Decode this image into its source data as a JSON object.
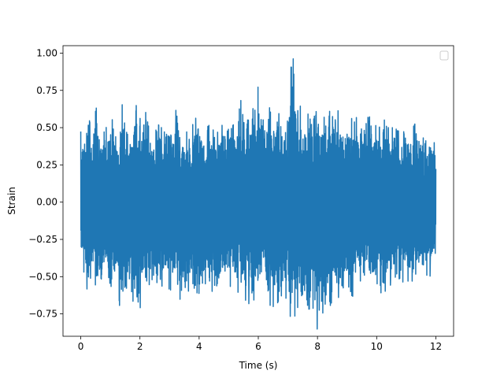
{
  "chart_data": {
    "type": "line",
    "title": "",
    "xlabel": "Time (s)",
    "ylabel": "Strain",
    "xlim": [
      -0.6,
      12.6
    ],
    "ylim": [
      -0.9,
      1.05
    ],
    "x_ticks": [
      0,
      2,
      4,
      6,
      8,
      10,
      12
    ],
    "x_tick_labels": [
      "0",
      "2",
      "4",
      "6",
      "8",
      "10",
      "12"
    ],
    "y_ticks": [
      -0.75,
      -0.5,
      -0.25,
      0.0,
      0.25,
      0.5,
      0.75,
      1.0
    ],
    "y_tick_labels": [
      "−0.75",
      "−0.50",
      "−0.25",
      "0.00",
      "0.25",
      "0.50",
      "0.75",
      "1.00"
    ],
    "grid": false,
    "legend": {
      "position": "top-right",
      "entries": []
    },
    "series": [
      {
        "color": "#1f77b4",
        "x_start": 0.0,
        "x_end": 12.0,
        "envelope": {
          "x": [
            0.0,
            0.1,
            0.2,
            0.3,
            0.4,
            0.5,
            0.6,
            0.7,
            0.8,
            0.9,
            1.0,
            1.1,
            1.2,
            1.3,
            1.4,
            1.5,
            1.6,
            1.7,
            1.8,
            1.9,
            2.0,
            2.1,
            2.2,
            2.3,
            2.4,
            2.5,
            2.6,
            2.7,
            2.8,
            2.9,
            3.0,
            3.1,
            3.2,
            3.3,
            3.4,
            3.5,
            3.6,
            3.7,
            3.8,
            3.9,
            4.0,
            4.1,
            4.2,
            4.3,
            4.4,
            4.5,
            4.6,
            4.7,
            4.8,
            4.9,
            5.0,
            5.1,
            5.2,
            5.3,
            5.4,
            5.5,
            5.6,
            5.7,
            5.8,
            5.9,
            6.0,
            6.1,
            6.2,
            6.3,
            6.4,
            6.5,
            6.6,
            6.7,
            6.8,
            6.9,
            7.0,
            7.1,
            7.2,
            7.3,
            7.4,
            7.5,
            7.6,
            7.7,
            7.8,
            7.9,
            8.0,
            8.1,
            8.2,
            8.3,
            8.4,
            8.5,
            8.6,
            8.7,
            8.8,
            8.9,
            9.0,
            9.1,
            9.2,
            9.3,
            9.4,
            9.5,
            9.6,
            9.7,
            9.8,
            9.9,
            10.0,
            10.1,
            10.2,
            10.3,
            10.4,
            10.5,
            10.6,
            10.7,
            10.8,
            10.9,
            11.0,
            11.1,
            11.2,
            11.3,
            11.4,
            11.5,
            11.6,
            11.7,
            11.8,
            11.9,
            12.0
          ],
          "max": [
            0.48,
            0.46,
            0.62,
            0.55,
            0.45,
            0.8,
            0.5,
            0.47,
            0.55,
            0.52,
            0.58,
            0.56,
            0.48,
            0.5,
            0.84,
            0.5,
            0.46,
            0.5,
            0.62,
            0.72,
            0.57,
            0.51,
            0.65,
            0.51,
            0.5,
            0.48,
            0.54,
            0.6,
            0.48,
            0.6,
            0.55,
            0.48,
            0.65,
            0.51,
            0.47,
            0.52,
            0.5,
            0.48,
            0.55,
            0.62,
            0.63,
            0.5,
            0.47,
            0.52,
            0.56,
            0.5,
            0.48,
            0.55,
            0.6,
            0.54,
            0.52,
            0.58,
            0.56,
            0.55,
            0.72,
            0.6,
            0.55,
            0.58,
            0.7,
            0.62,
            0.8,
            0.58,
            0.55,
            0.6,
            0.65,
            0.62,
            0.58,
            0.7,
            0.6,
            0.62,
            0.55,
            0.96,
            1.0,
            0.6,
            0.68,
            0.58,
            0.6,
            0.85,
            0.57,
            0.62,
            0.72,
            0.58,
            0.6,
            0.55,
            0.68,
            0.65,
            0.58,
            0.62,
            0.6,
            0.52,
            0.58,
            0.55,
            0.62,
            0.58,
            0.52,
            0.55,
            0.65,
            0.58,
            0.6,
            0.5,
            0.55,
            0.52,
            0.48,
            0.62,
            0.5,
            0.52,
            0.55,
            0.48,
            0.5,
            0.46,
            0.58,
            0.5,
            0.48,
            0.55,
            0.42,
            0.5,
            0.45,
            0.48,
            0.47,
            0.45,
            0.42
          ],
          "min": [
            -0.42,
            -0.52,
            -0.65,
            -0.55,
            -0.48,
            -0.58,
            -0.55,
            -0.66,
            -0.5,
            -0.56,
            -0.58,
            -0.62,
            -0.55,
            -0.7,
            -0.8,
            -0.62,
            -0.68,
            -0.6,
            -0.78,
            -0.66,
            -0.84,
            -0.62,
            -0.58,
            -0.6,
            -0.55,
            -0.58,
            -0.62,
            -0.55,
            -0.6,
            -0.58,
            -0.6,
            -0.65,
            -0.55,
            -0.74,
            -0.6,
            -0.58,
            -0.62,
            -0.6,
            -0.58,
            -0.65,
            -0.78,
            -0.62,
            -0.6,
            -0.55,
            -0.62,
            -0.58,
            -0.75,
            -0.62,
            -0.58,
            -0.6,
            -0.62,
            -0.58,
            -0.6,
            -0.65,
            -0.62,
            -0.68,
            -0.65,
            -0.72,
            -0.78,
            -0.62,
            -0.7,
            -0.65,
            -0.6,
            -0.58,
            -0.72,
            -0.75,
            -0.8,
            -0.7,
            -0.74,
            -0.68,
            -0.72,
            -0.86,
            -0.8,
            -0.74,
            -0.78,
            -0.85,
            -0.7,
            -0.84,
            -0.8,
            -0.72,
            -0.87,
            -0.75,
            -0.78,
            -0.7,
            -0.72,
            -0.68,
            -0.65,
            -0.7,
            -0.66,
            -0.62,
            -0.6,
            -0.62,
            -0.65,
            -0.6,
            -0.55,
            -0.58,
            -0.62,
            -0.55,
            -0.6,
            -0.58,
            -0.55,
            -0.6,
            -0.62,
            -0.6,
            -0.55,
            -0.58,
            -0.55,
            -0.5,
            -0.58,
            -0.55,
            -0.52,
            -0.55,
            -0.55,
            -0.48,
            -0.52,
            -0.5,
            -0.48,
            -0.5,
            -0.5,
            -0.48,
            -0.38
          ]
        }
      }
    ]
  }
}
